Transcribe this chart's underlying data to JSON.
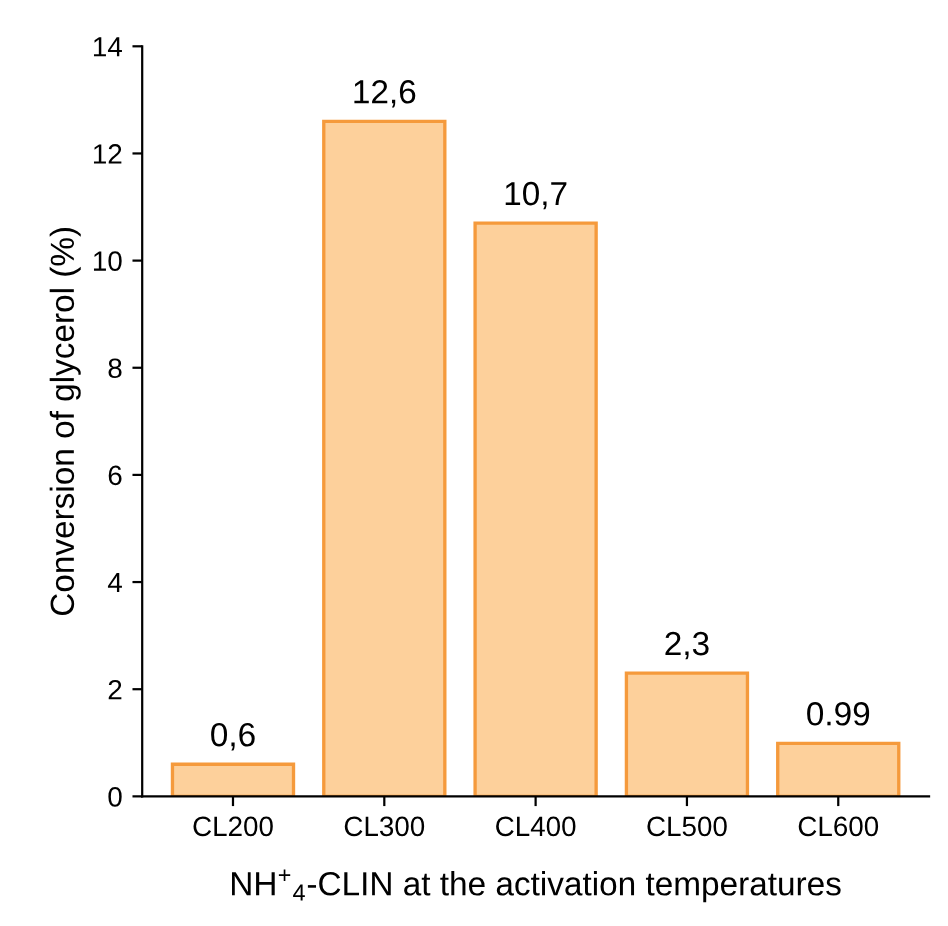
{
  "chart_data": {
    "type": "bar",
    "xlabel": "NH$^{+}$$_{4}$-CLIN at the activation temperatures",
    "ylabel": "Conversion of glycerol (%)",
    "categories": [
      "CL200",
      "CL300",
      "CL400",
      "CL500",
      "CL600"
    ],
    "values": [
      0.6,
      12.6,
      10.7,
      2.3,
      0.99
    ],
    "value_labels": [
      "0,6",
      "12,6",
      "10,7",
      "2,3",
      "0.99"
    ],
    "color": "#fdd09b",
    "ylim": [
      0,
      14
    ],
    "yticks": [
      0,
      2,
      4,
      6,
      8,
      10,
      12,
      14
    ],
    "grid": false
  }
}
